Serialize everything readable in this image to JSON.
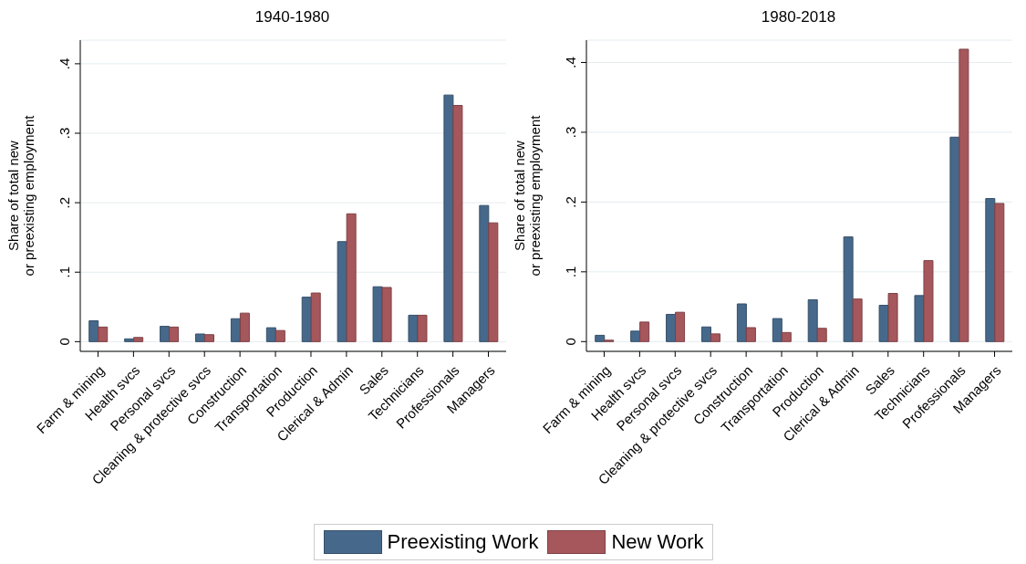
{
  "chart_data": [
    {
      "type": "bar",
      "title": "1940-1980",
      "ylabel": "Share of total new\nor preexisting employment",
      "categories": [
        "Farm & mining",
        "Health svcs",
        "Personal svcs",
        "Cleaning & protective svcs",
        "Construction",
        "Transportation",
        "Production",
        "Clerical & Admin",
        "Sales",
        "Technicians",
        "Professionals",
        "Managers"
      ],
      "series": [
        {
          "name": "Preexisting Work",
          "color": "#46698b",
          "values": [
            0.03,
            0.004,
            0.022,
            0.011,
            0.033,
            0.02,
            0.064,
            0.144,
            0.079,
            0.038,
            0.355,
            0.196
          ]
        },
        {
          "name": "New Work",
          "color": "#a6575c",
          "values": [
            0.021,
            0.006,
            0.021,
            0.01,
            0.041,
            0.016,
            0.07,
            0.184,
            0.078,
            0.038,
            0.34,
            0.171
          ]
        }
      ],
      "ylim": [
        -0.014,
        0.434
      ],
      "yticks": [
        {
          "value": 0,
          "label": "0"
        },
        {
          "value": 0.1,
          "label": ".1"
        },
        {
          "value": 0.2,
          "label": ".2"
        },
        {
          "value": 0.3,
          "label": ".3"
        },
        {
          "value": 0.4,
          "label": ".4"
        }
      ],
      "grid": "y",
      "legend": "bottom"
    },
    {
      "type": "bar",
      "title": "1980-2018",
      "ylabel": "Share of total new\nor preexisting employment",
      "categories": [
        "Farm & mining",
        "Health svcs",
        "Personal svcs",
        "Cleaning & protective svcs",
        "Construction",
        "Transportation",
        "Production",
        "Clerical & Admin",
        "Sales",
        "Technicians",
        "Professionals",
        "Managers"
      ],
      "series": [
        {
          "name": "Preexisting Work",
          "color": "#46698b",
          "values": [
            0.009,
            0.015,
            0.039,
            0.021,
            0.054,
            0.033,
            0.06,
            0.15,
            0.052,
            0.066,
            0.293,
            0.205
          ]
        },
        {
          "name": "New Work",
          "color": "#a6575c",
          "values": [
            0.002,
            0.028,
            0.042,
            0.011,
            0.02,
            0.013,
            0.019,
            0.061,
            0.069,
            0.116,
            0.419,
            0.198
          ]
        }
      ],
      "ylim": [
        -0.014,
        0.432
      ],
      "yticks": [
        {
          "value": 0,
          "label": "0"
        },
        {
          "value": 0.1,
          "label": ".1"
        },
        {
          "value": 0.2,
          "label": ".2"
        },
        {
          "value": 0.3,
          "label": ".3"
        },
        {
          "value": 0.4,
          "label": ".4"
        }
      ],
      "grid": "y"
    }
  ]
}
